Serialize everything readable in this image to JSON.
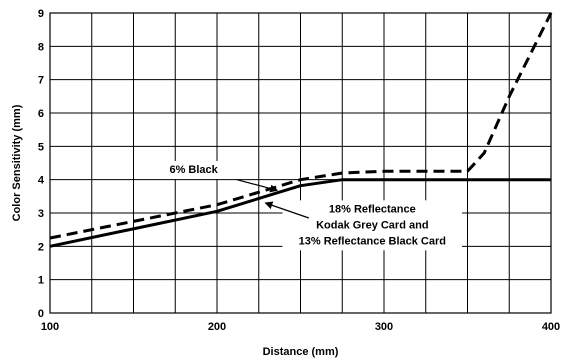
{
  "chart_data": {
    "type": "line",
    "title": "",
    "xlabel": "Distance (mm)",
    "ylabel": "Color Sensitivity (mm)",
    "xlim": [
      100,
      400
    ],
    "ylim": [
      0,
      9
    ],
    "x_ticks": [
      "100",
      "200",
      "300",
      "400"
    ],
    "y_ticks": [
      "0",
      "1",
      "2",
      "3",
      "4",
      "5",
      "6",
      "7",
      "8",
      "9"
    ],
    "grid": true,
    "x_minor_step": 25,
    "series": [
      {
        "name": "6% Black",
        "style": "dashed",
        "color": "#000000",
        "points": [
          [
            100,
            2.25
          ],
          [
            200,
            3.25
          ],
          [
            250,
            4.0
          ],
          [
            275,
            4.2
          ],
          [
            300,
            4.25
          ],
          [
            340,
            4.25
          ],
          [
            350,
            4.25
          ],
          [
            360,
            4.8
          ],
          [
            375,
            6.5
          ],
          [
            390,
            8.0
          ],
          [
            400,
            9.0
          ]
        ]
      },
      {
        "name": "18% Reflectance Kodak Grey Card and 13% Reflectance Black Card",
        "style": "solid",
        "color": "#000000",
        "points": [
          [
            100,
            2.0
          ],
          [
            200,
            3.05
          ],
          [
            250,
            3.82
          ],
          [
            275,
            4.0
          ],
          [
            300,
            4.0
          ],
          [
            400,
            4.0
          ]
        ]
      }
    ],
    "annotations": [
      {
        "lines": [
          "6% Black"
        ],
        "text_pos": [
          186,
          4.2
        ],
        "arrow_from": [
          212,
          4.0
        ],
        "arrow_to": [
          236,
          3.68
        ]
      },
      {
        "lines": [
          "18% Reflectance",
          "Kodak Grey Card and",
          "13% Reflectance Black Card"
        ],
        "text_pos": [
          293,
          3.02
        ],
        "arrow_from": [
          255,
          2.85
        ],
        "arrow_to": [
          229,
          3.3
        ]
      }
    ]
  }
}
